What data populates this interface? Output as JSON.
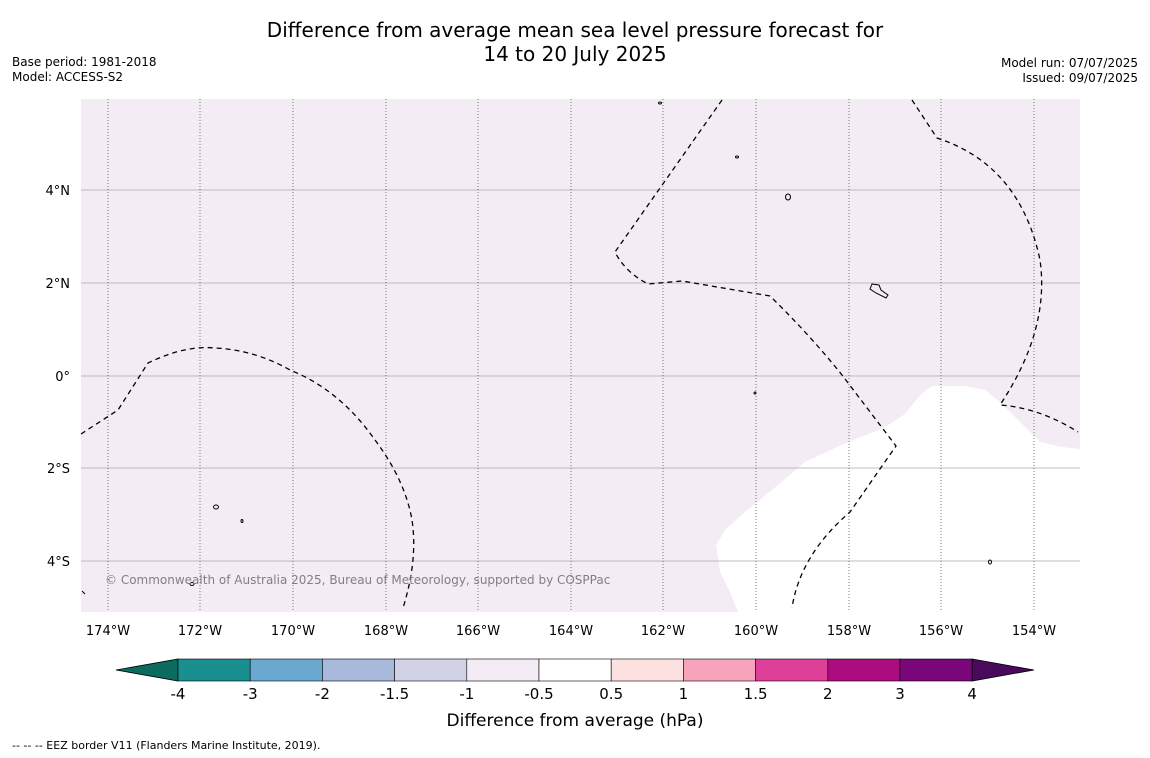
{
  "title_line1": "Difference from average mean sea level pressure forecast for",
  "title_line2": "14 to 20 July 2025",
  "base_period": "Base period: 1981-2018",
  "model": "Model: ACCESS-S2",
  "model_run": "Model run: 07/07/2025",
  "issued": "Issued: 09/07/2025",
  "credit": "© Commonwealth of Australia 2025, Bureau of Meteorology, supported by COSPPac",
  "footnote": "--  --  -- EEZ border V11 (Flanders Marine Institute, 2019).",
  "lon_ticks": [
    "174°W",
    "172°W",
    "170°W",
    "168°W",
    "166°W",
    "164°W",
    "162°W",
    "160°W",
    "158°W",
    "156°W",
    "154°W"
  ],
  "lat_ticks": [
    "4°N",
    "2°N",
    "0°",
    "2°S",
    "4°S"
  ],
  "colorbar": {
    "title": "Difference from average (hPa)",
    "labels": [
      "-4",
      "-3",
      "-2",
      "-1.5",
      "-1",
      "-0.5",
      "0.5",
      "1",
      "1.5",
      "2",
      "3",
      "4"
    ],
    "colors": {
      "below_min": "#0b6b5f",
      "bins": [
        "#1a8f8f",
        "#69a9d0",
        "#a8b9dc",
        "#d2d2e6",
        "#f4ecf4",
        "#ffffff",
        "#fde0e0",
        "#f7a3bb",
        "#de3f98",
        "#ad0c80",
        "#7a0779"
      ],
      "above_max": "#4a0a5c"
    }
  },
  "map": {
    "background_anomaly_color": "#f4ecf4",
    "near_zero_color": "#ffffff"
  }
}
